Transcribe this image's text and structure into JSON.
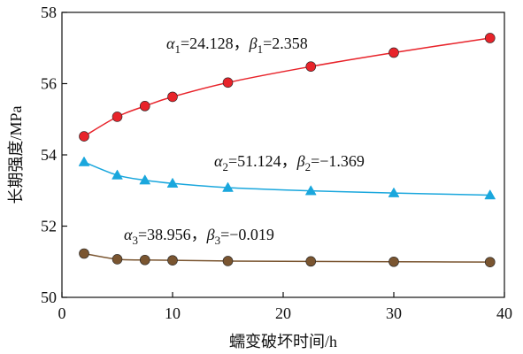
{
  "chart_data": {
    "type": "line",
    "xlabel": "蠕变破坏时间/h",
    "ylabel": "长期强度/MPa",
    "xlim": [
      0,
      40
    ],
    "ylim": [
      50,
      58
    ],
    "xticks": [
      0,
      10,
      20,
      30,
      40
    ],
    "yticks": [
      50,
      52,
      54,
      56,
      58
    ],
    "grid": false,
    "x": [
      2,
      5,
      7.5,
      10,
      15,
      22.5,
      30,
      38.7
    ],
    "series": [
      {
        "color": "#e8232a",
        "marker": "circle",
        "values": [
          54.52,
          55.07,
          55.37,
          55.63,
          56.03,
          56.48,
          56.87,
          57.28
        ],
        "annotation": {
          "alpha_label": "α",
          "alpha_sub": "1",
          "alpha_value": "=24.128，",
          "beta_label": "β",
          "beta_sub": "1",
          "beta_value": "=2.358"
        }
      },
      {
        "color": "#1aa7dd",
        "marker": "triangle",
        "values": [
          53.8,
          53.43,
          53.29,
          53.2,
          53.08,
          52.99,
          52.93,
          52.87
        ],
        "annotation": {
          "alpha_label": "α",
          "alpha_sub": "2",
          "alpha_value": "=51.124，",
          "beta_label": "β",
          "beta_sub": "2",
          "beta_value": "=−1.369"
        }
      },
      {
        "color": "#7a5530",
        "marker": "circle",
        "values": [
          51.23,
          51.07,
          51.05,
          51.04,
          51.02,
          51.01,
          51.0,
          50.99
        ],
        "annotation": {
          "alpha_label": "α",
          "alpha_sub": "3",
          "alpha_value": "=38.956，",
          "beta_label": "β",
          "beta_sub": "3",
          "beta_value": "=−0.019"
        }
      }
    ]
  }
}
